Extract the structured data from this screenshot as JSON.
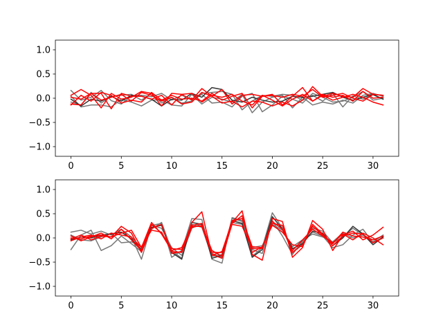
{
  "chart_data": [
    {
      "type": "line",
      "title": "",
      "xlabel": "",
      "ylabel": "",
      "xlim": [
        -1.55,
        32.55
      ],
      "ylim": [
        -1.2,
        1.2
      ],
      "xticks": [
        0,
        5,
        10,
        15,
        20,
        25,
        30
      ],
      "yticks": [
        -1.0,
        -0.5,
        0.0,
        0.5,
        1.0
      ],
      "xtick_labels": [
        "0",
        "5",
        "10",
        "15",
        "20",
        "25",
        "30"
      ],
      "ytick_labels": [
        "−1.0",
        "−0.5",
        "0.0",
        "0.5",
        "1.0"
      ],
      "grid": false,
      "legend": "none",
      "x": [
        0,
        1,
        2,
        3,
        4,
        5,
        6,
        7,
        8,
        9,
        10,
        11,
        12,
        13,
        14,
        15,
        16,
        17,
        18,
        19,
        20,
        21,
        22,
        23,
        24,
        25,
        26,
        27,
        28,
        29,
        30,
        31
      ],
      "series": [
        {
          "color": "#777777",
          "values": [
            0.16,
            -0.04,
            0.02,
            0.16,
            -0.05,
            -0.12,
            0.05,
            0.06,
            0.03,
            0.1,
            -0.04,
            0.06,
            -0.02,
            0.1,
            0.12,
            0.14,
            0.08,
            -0.24,
            -0.06,
            0.06,
            0.04,
            0.08,
            0.06,
            -0.04,
            0.06,
            -0.06,
            0.1,
            -0.18,
            0.05,
            -0.02,
            0.07,
            -0.02
          ]
        },
        {
          "color": "#777777",
          "values": [
            0.04,
            -0.18,
            -0.14,
            -0.14,
            -0.18,
            -0.02,
            -0.08,
            -0.16,
            -0.04,
            -0.03,
            -0.14,
            -0.16,
            0.08,
            -0.12,
            0.02,
            -0.02,
            -0.08,
            0.08,
            -0.3,
            -0.08,
            0.02,
            0.06,
            -0.2,
            0.02,
            -0.14,
            -0.08,
            -0.12,
            -0.04,
            -0.1,
            0.06,
            0.1,
            0.04
          ]
        },
        {
          "color": "#777777",
          "values": [
            -0.08,
            -0.14,
            0.12,
            -0.1,
            0.04,
            0.06,
            0.08,
            -0.04,
            0.1,
            -0.1,
            0.02,
            -0.1,
            -0.06,
            0.08,
            -0.1,
            -0.08,
            -0.18,
            0.04,
            0.1,
            -0.28,
            -0.14,
            0.04,
            -0.02,
            -0.1,
            0.1,
            0.02,
            -0.08,
            -0.06,
            0.02,
            0.14,
            -0.04,
            0.0
          ]
        },
        {
          "color": "#333333",
          "values": [
            -0.02,
            -0.16,
            -0.02,
            -0.06,
            0.04,
            -0.06,
            0.06,
            0.04,
            -0.02,
            -0.16,
            -0.02,
            -0.04,
            0.1,
            0.02,
            0.22,
            0.18,
            -0.04,
            -0.08,
            0.02,
            -0.04,
            -0.08,
            -0.06,
            0.04,
            0.02,
            0.04,
            0.08,
            0.12,
            0.02,
            -0.04,
            0.02,
            0.08,
            -0.02
          ]
        },
        {
          "color": "#ff0000",
          "values": [
            0.06,
            0.18,
            0.06,
            -0.2,
            0.1,
            -0.02,
            0.02,
            0.14,
            0.1,
            -0.16,
            0.1,
            0.08,
            -0.04,
            0.2,
            0.04,
            -0.1,
            -0.06,
            -0.18,
            -0.06,
            -0.08,
            -0.16,
            -0.08,
            -0.16,
            -0.04,
            0.24,
            0.04,
            0.1,
            0.04,
            0.02,
            0.2,
            0.08,
            0.06
          ]
        },
        {
          "color": "#ff0000",
          "values": [
            -0.12,
            -0.14,
            0.1,
            0.1,
            -0.22,
            0.1,
            0.04,
            0.04,
            -0.02,
            0.06,
            -0.14,
            0.08,
            0.1,
            -0.08,
            0.06,
            0.02,
            0.08,
            -0.06,
            -0.14,
            0.06,
            -0.04,
            -0.16,
            -0.02,
            0.08,
            -0.06,
            0.08,
            0.02,
            0.06,
            -0.06,
            0.14,
            0.0,
            0.02
          ]
        },
        {
          "color": "#ff0000",
          "values": [
            -0.14,
            0.06,
            -0.06,
            0.12,
            0.06,
            -0.1,
            -0.04,
            -0.08,
            0.12,
            -0.04,
            0.06,
            -0.02,
            0.0,
            -0.06,
            0.1,
            -0.04,
            0.04,
            0.1,
            -0.2,
            0.04,
            0.08,
            -0.14,
            0.04,
            0.22,
            -0.06,
            0.06,
            -0.04,
            0.02,
            0.08,
            0.02,
            -0.08,
            -0.14
          ]
        },
        {
          "color": "#ff0000",
          "values": [
            0.02,
            -0.02,
            0.1,
            -0.04,
            0.02,
            0.08,
            -0.06,
            0.12,
            0.06,
            -0.06,
            0.02,
            -0.12,
            -0.08,
            0.12,
            0.04,
            0.18,
            -0.12,
            0.06,
            0.08,
            0.04,
            0.06,
            0.02,
            0.08,
            0.04,
            0.18,
            0.02,
            0.06,
            0.1,
            0.0,
            -0.06,
            0.08,
            0.06
          ]
        }
      ]
    },
    {
      "type": "line",
      "title": "",
      "xlabel": "",
      "ylabel": "",
      "xlim": [
        -1.55,
        32.55
      ],
      "ylim": [
        -1.2,
        1.2
      ],
      "xticks": [
        0,
        5,
        10,
        15,
        20,
        25,
        30
      ],
      "yticks": [
        -1.0,
        -0.5,
        0.0,
        0.5,
        1.0
      ],
      "xtick_labels": [
        "0",
        "5",
        "10",
        "15",
        "20",
        "25",
        "30"
      ],
      "ytick_labels": [
        "−1.0",
        "−0.5",
        "0.0",
        "0.5",
        "1.0"
      ],
      "grid": false,
      "legend": "none",
      "x": [
        0,
        1,
        2,
        3,
        4,
        5,
        6,
        7,
        8,
        9,
        10,
        11,
        12,
        13,
        14,
        15,
        16,
        17,
        18,
        19,
        20,
        21,
        22,
        23,
        24,
        25,
        26,
        27,
        28,
        29,
        30,
        31
      ],
      "series": [
        {
          "color": "#777777",
          "values": [
            0.12,
            0.16,
            0.08,
            0.14,
            0.06,
            0.18,
            0.02,
            -0.44,
            0.26,
            0.3,
            -0.4,
            -0.26,
            0.4,
            0.38,
            -0.44,
            -0.52,
            0.42,
            0.36,
            -0.38,
            -0.2,
            0.52,
            0.2,
            -0.3,
            -0.1,
            0.2,
            0.14,
            -0.1,
            0.02,
            0.2,
            0.06,
            -0.08,
            0.06
          ]
        },
        {
          "color": "#777777",
          "values": [
            -0.24,
            0.06,
            0.16,
            -0.26,
            -0.16,
            0.04,
            -0.12,
            -0.28,
            0.26,
            0.2,
            -0.2,
            -0.36,
            0.2,
            0.3,
            -0.32,
            -0.4,
            0.4,
            0.34,
            -0.24,
            -0.32,
            0.36,
            0.04,
            -0.34,
            -0.06,
            0.12,
            0.04,
            -0.2,
            -0.14,
            0.06,
            0.18,
            -0.1,
            0.02
          ]
        },
        {
          "color": "#777777",
          "values": [
            0.06,
            -0.04,
            -0.06,
            0.02,
            0.1,
            -0.1,
            -0.08,
            -0.18,
            0.18,
            0.32,
            -0.26,
            -0.42,
            0.28,
            0.22,
            -0.38,
            -0.34,
            0.32,
            0.28,
            -0.2,
            -0.16,
            0.28,
            0.16,
            -0.18,
            -0.04,
            0.08,
            0.02,
            -0.08,
            0.1,
            0.0,
            0.06,
            -0.04,
            0.04
          ]
        },
        {
          "color": "#333333",
          "values": [
            -0.04,
            0.02,
            0.0,
            0.06,
            0.08,
            0.12,
            -0.02,
            -0.24,
            0.22,
            0.26,
            -0.3,
            -0.44,
            0.32,
            0.28,
            -0.42,
            -0.36,
            0.36,
            0.3,
            -0.4,
            -0.24,
            0.44,
            0.18,
            -0.22,
            -0.12,
            0.14,
            0.1,
            -0.16,
            0.0,
            0.24,
            0.08,
            -0.14,
            0.02
          ]
        },
        {
          "color": "#ff0000",
          "values": [
            -0.02,
            0.06,
            -0.04,
            0.04,
            0.02,
            0.24,
            0.1,
            -0.3,
            0.2,
            0.28,
            -0.32,
            -0.28,
            0.32,
            0.54,
            -0.36,
            -0.28,
            0.32,
            0.56,
            -0.34,
            -0.46,
            0.4,
            0.34,
            -0.4,
            -0.2,
            0.36,
            0.18,
            -0.26,
            0.06,
            0.14,
            -0.04,
            0.06,
            0.22
          ]
        },
        {
          "color": "#ff0000",
          "values": [
            0.04,
            -0.06,
            0.02,
            0.1,
            -0.02,
            0.18,
            -0.04,
            -0.26,
            0.28,
            0.1,
            -0.22,
            -0.24,
            0.26,
            0.3,
            -0.3,
            -0.3,
            0.36,
            0.4,
            -0.18,
            -0.2,
            0.3,
            0.26,
            -0.3,
            -0.14,
            0.24,
            0.06,
            -0.1,
            0.08,
            -0.04,
            0.1,
            0.0,
            -0.14
          ]
        },
        {
          "color": "#ff0000",
          "values": [
            -0.06,
            0.02,
            0.06,
            -0.02,
            0.1,
            0.06,
            0.02,
            -0.2,
            0.16,
            0.12,
            -0.28,
            -0.3,
            0.22,
            0.26,
            -0.26,
            -0.38,
            0.28,
            0.24,
            -0.22,
            -0.22,
            0.34,
            0.18,
            -0.26,
            -0.04,
            0.18,
            0.04,
            -0.12,
            0.12,
            0.04,
            0.02,
            -0.04,
            0.04
          ]
        },
        {
          "color": "#ff0000",
          "values": [
            0.0,
            -0.02,
            0.04,
            0.06,
            0.02,
            0.1,
            0.16,
            -0.2,
            0.32,
            0.08,
            -0.26,
            -0.2,
            0.24,
            0.24,
            -0.34,
            -0.42,
            0.3,
            0.46,
            -0.3,
            -0.18,
            0.26,
            0.12,
            -0.14,
            -0.18,
            0.28,
            0.08,
            -0.16,
            0.04,
            0.1,
            0.08,
            -0.1,
            0.0
          ]
        }
      ]
    }
  ]
}
